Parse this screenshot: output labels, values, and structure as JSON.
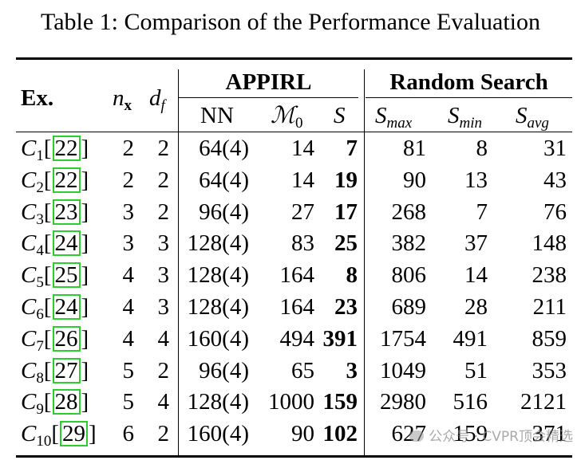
{
  "caption": "Table 1: Comparison of the Performance Evaluation",
  "header": {
    "ex": "Ex.",
    "nx": "n",
    "nx_sub": "x",
    "df": "d",
    "df_sub": "f",
    "group_appirl": "APPIRL",
    "group_random": "Random Search",
    "nn": "NN",
    "m0": "ℳ",
    "m0_sub": "0",
    "s": "S",
    "smax": "S",
    "smax_sub": "max",
    "smin": "S",
    "smin_sub": "min",
    "savg": "S",
    "savg_sub": "avg"
  },
  "rows": [
    {
      "ex": "C",
      "ex_sub": "1",
      "cite": "22",
      "nx": "2",
      "df": "2",
      "nn": "64(4)",
      "m0": "14",
      "s": "7",
      "smax": "81",
      "smin": "8",
      "savg": "31"
    },
    {
      "ex": "C",
      "ex_sub": "2",
      "cite": "22",
      "nx": "2",
      "df": "2",
      "nn": "64(4)",
      "m0": "14",
      "s": "19",
      "smax": "90",
      "smin": "13",
      "savg": "43"
    },
    {
      "ex": "C",
      "ex_sub": "3",
      "cite": "23",
      "nx": "3",
      "df": "2",
      "nn": "96(4)",
      "m0": "27",
      "s": "17",
      "smax": "268",
      "smin": "7",
      "savg": "76"
    },
    {
      "ex": "C",
      "ex_sub": "4",
      "cite": "24",
      "nx": "3",
      "df": "3",
      "nn": "128(4)",
      "m0": "83",
      "s": "25",
      "smax": "382",
      "smin": "37",
      "savg": "148"
    },
    {
      "ex": "C",
      "ex_sub": "5",
      "cite": "25",
      "nx": "4",
      "df": "3",
      "nn": "128(4)",
      "m0": "164",
      "s": "8",
      "smax": "806",
      "smin": "14",
      "savg": "238"
    },
    {
      "ex": "C",
      "ex_sub": "6",
      "cite": "24",
      "nx": "4",
      "df": "3",
      "nn": "128(4)",
      "m0": "164",
      "s": "23",
      "smax": "689",
      "smin": "28",
      "savg": "211"
    },
    {
      "ex": "C",
      "ex_sub": "7",
      "cite": "26",
      "nx": "4",
      "df": "4",
      "nn": "160(4)",
      "m0": "494",
      "s": "391",
      "smax": "1754",
      "smin": "491",
      "savg": "859"
    },
    {
      "ex": "C",
      "ex_sub": "8",
      "cite": "27",
      "nx": "5",
      "df": "2",
      "nn": "96(4)",
      "m0": "65",
      "s": "3",
      "smax": "1049",
      "smin": "51",
      "savg": "353"
    },
    {
      "ex": "C",
      "ex_sub": "9",
      "cite": "28",
      "nx": "5",
      "df": "4",
      "nn": "128(4)",
      "m0": "1000",
      "s": "159",
      "smax": "2980",
      "smin": "516",
      "savg": "2121"
    },
    {
      "ex": "C",
      "ex_sub": "10",
      "cite": "29",
      "nx": "6",
      "df": "2",
      "nn": "160(4)",
      "m0": "90",
      "s": "102",
      "smax": "627",
      "smin": "159",
      "savg": "371"
    }
  ],
  "watermark": "公众号 · CVPR顶会精选"
}
